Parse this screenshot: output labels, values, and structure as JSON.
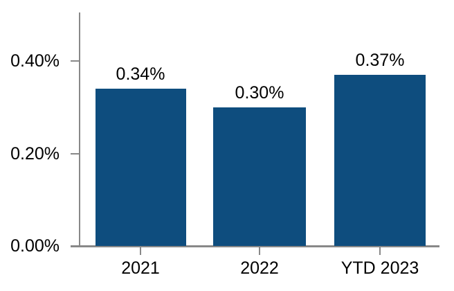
{
  "chart_data": {
    "type": "bar",
    "title": "",
    "categories": [
      "2021",
      "2022",
      "YTD 2023"
    ],
    "values": [
      0.34,
      0.3,
      0.37
    ],
    "data_labels": [
      "0.34%",
      "0.30%",
      "0.37%"
    ],
    "unit": "%",
    "xlabel": "",
    "ylabel": "",
    "ylim": [
      0,
      0.505
    ],
    "yticks": [
      {
        "value": 0.0,
        "label": "0.00%"
      },
      {
        "value": 0.2,
        "label": "0.20%"
      },
      {
        "value": 0.4,
        "label": "0.40%"
      }
    ],
    "grid": false,
    "legend": false,
    "colors": {
      "bar": "#0E4D7E",
      "axis": "#888888",
      "text": "#000000",
      "background": "#FFFFFF"
    }
  }
}
